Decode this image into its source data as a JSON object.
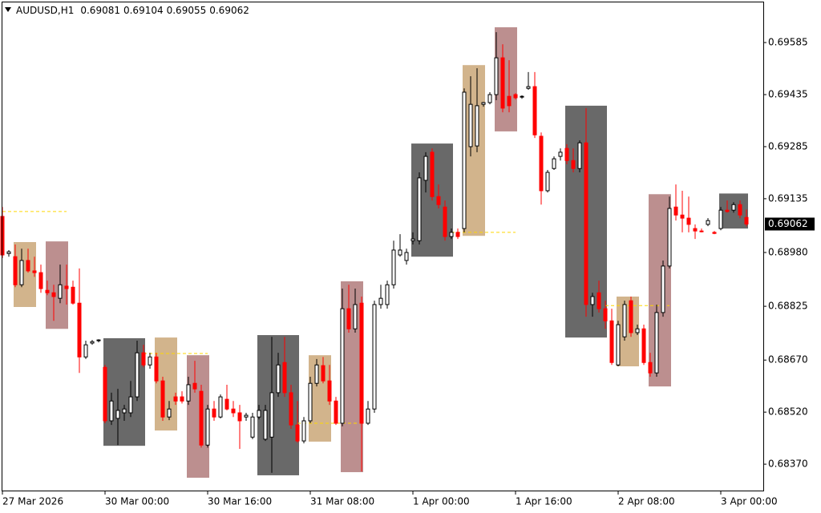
{
  "chart_data": {
    "type": "candlestick",
    "title": "AUDUSD,H1",
    "up_color": "#000000",
    "up_fill": "#ffffff",
    "down_color": "#ff0000",
    "categories": [
      "27 Mar 2026",
      null,
      null,
      null,
      null,
      null,
      null,
      null,
      null,
      null,
      null,
      null,
      null,
      null,
      null,
      null,
      "30 Mar 00:00",
      null,
      null,
      null,
      null,
      null,
      null,
      null,
      null,
      null,
      null,
      null,
      null,
      null,
      null,
      null,
      "30 Mar 16:00",
      null,
      null,
      null,
      null,
      null,
      null,
      null,
      null,
      null,
      null,
      null,
      null,
      null,
      null,
      null,
      "31 Mar 08:00",
      null,
      null,
      null,
      null,
      null,
      null,
      null,
      null,
      null,
      null,
      null,
      null,
      null,
      null,
      null,
      "1 Apr 00:00",
      null,
      null,
      null,
      null,
      null,
      null,
      null,
      null,
      null,
      null,
      null,
      null,
      null,
      null,
      null,
      "1 Apr 16:00",
      null,
      null,
      null,
      null,
      null,
      null,
      null,
      null,
      null,
      null,
      null,
      null,
      null,
      null,
      null,
      "2 Apr 08:00",
      null,
      null,
      null,
      null,
      null,
      null,
      null,
      null,
      null,
      null,
      null,
      null,
      null,
      null,
      null,
      "3 Apr 00:00",
      null,
      null,
      null,
      null
    ],
    "open": [
      0.69084,
      0.68977,
      0.68968,
      0.68887,
      0.68957,
      0.68927,
      0.68922,
      0.68871,
      0.68864,
      0.68848,
      0.68883,
      0.6888,
      0.68834,
      0.68679,
      0.68719,
      0.68726,
      0.68649,
      0.68495,
      0.68502,
      0.68518,
      0.68518,
      0.68564,
      0.68691,
      0.68656,
      0.68679,
      0.6861,
      0.68506,
      0.68564,
      0.68564,
      0.68552,
      0.68603,
      0.6858,
      0.68425,
      0.68529,
      0.68506,
      0.68557,
      0.68529,
      0.68518,
      0.68506,
      0.68448,
      0.68506,
      0.68442,
      0.68448,
      0.68576,
      0.68663,
      0.68576,
      0.68483,
      0.68437,
      0.68495,
      0.68603,
      0.68654,
      0.6861,
      0.68552,
      0.68488,
      0.68818,
      0.6876,
      0.68834,
      0.68488,
      0.68529,
      0.6883,
      0.6883,
      0.68887,
      0.68973,
      0.68957,
      0.69014,
      0.69014,
      0.69188,
      0.69269,
      0.69141,
      0.69111,
      0.69026,
      0.69038,
      0.69049,
      0.69285,
      0.69287,
      0.69407,
      0.69412,
      0.69435,
      0.69541,
      0.6943,
      0.69435,
      0.69428,
      0.69453,
      0.69458,
      0.69315,
      0.69158,
      0.69222,
      0.69257,
      0.6928,
      0.69245,
      0.69222,
      0.69296,
      0.6883,
      0.68864,
      0.68818,
      0.68783,
      0.68656,
      0.68737,
      0.68841,
      0.68749,
      0.6876,
      0.68663,
      0.68633,
      0.68807,
      0.68941,
      0.69111,
      0.69088,
      0.69079,
      0.69049,
      0.69042,
      0.69061,
      0.69038,
      0.69049,
      0.69102,
      0.69102,
      0.69118,
      0.69081
    ],
    "high": [
      0.69111,
      0.68987,
      0.69003,
      0.68991,
      0.68991,
      0.68968,
      0.68945,
      0.68899,
      0.68887,
      0.68945,
      0.68945,
      0.68899,
      0.68934,
      0.68726,
      0.68728,
      0.6873,
      0.68656,
      0.68576,
      0.68587,
      0.68541,
      0.6861,
      0.68726,
      0.68714,
      0.68691,
      0.68691,
      0.68622,
      0.68552,
      0.68576,
      0.6858,
      0.68622,
      0.68668,
      0.68599,
      0.68541,
      0.68552,
      0.68571,
      0.68599,
      0.68552,
      0.68541,
      0.68518,
      0.68518,
      0.68541,
      0.68541,
      0.68737,
      0.68691,
      0.68737,
      0.68599,
      0.68552,
      0.68506,
      0.68622,
      0.68673,
      0.68679,
      0.68656,
      0.68564,
      0.68876,
      0.68887,
      0.68876,
      0.68853,
      0.68552,
      0.68841,
      0.68887,
      0.68899,
      0.69014,
      0.69033,
      0.68991,
      0.69038,
      0.69211,
      0.69269,
      0.6928,
      0.69176,
      0.6913,
      0.69049,
      0.69049,
      0.69453,
      0.69488,
      0.69511,
      0.69414,
      0.69442,
      0.69615,
      0.6958,
      0.69534,
      0.69439,
      0.69433,
      0.695,
      0.695,
      0.69326,
      0.69218,
      0.69257,
      0.6928,
      0.69292,
      0.6928,
      0.69303,
      0.69396,
      0.68864,
      0.68899,
      0.68841,
      0.68818,
      0.68783,
      0.68841,
      0.68853,
      0.68772,
      0.68772,
      0.68691,
      0.6883,
      0.68957,
      0.69141,
      0.69176,
      0.69158,
      0.69141,
      0.69061,
      0.69049,
      0.69079,
      0.69042,
      0.69111,
      0.6913,
      0.69125,
      0.6913,
      0.69104
    ],
    "low": [
      0.68964,
      0.68968,
      0.6888,
      0.6888,
      0.68922,
      0.6891,
      0.68864,
      0.68857,
      0.68783,
      0.68834,
      0.6883,
      0.6883,
      0.68633,
      0.68673,
      0.68714,
      0.68721,
      0.68488,
      0.68483,
      0.68425,
      0.68495,
      0.68506,
      0.68552,
      0.68649,
      0.68645,
      0.68603,
      0.68495,
      0.68497,
      0.68541,
      0.68545,
      0.68541,
      0.68576,
      0.68418,
      0.68418,
      0.68495,
      0.68502,
      0.68525,
      0.68506,
      0.68414,
      0.68495,
      0.68442,
      0.68499,
      0.68437,
      0.68345,
      0.68564,
      0.68564,
      0.68472,
      0.68432,
      0.6843,
      0.68488,
      0.68594,
      0.68603,
      0.68541,
      0.68483,
      0.68479,
      0.68749,
      0.68749,
      0.68349,
      0.68483,
      0.68518,
      0.68818,
      0.68818,
      0.68876,
      0.68968,
      0.68945,
      0.69003,
      0.69003,
      0.69153,
      0.6913,
      0.69107,
      0.69014,
      0.69019,
      0.69019,
      0.69038,
      0.69257,
      0.69269,
      0.694,
      0.69407,
      0.69419,
      0.69384,
      0.69384,
      0.69421,
      0.69423,
      0.69449,
      0.6931,
      0.69118,
      0.69153,
      0.69218,
      0.69245,
      0.69234,
      0.69211,
      0.69211,
      0.68795,
      0.68795,
      0.68807,
      0.6876,
      0.68656,
      0.68652,
      0.68726,
      0.68737,
      0.68742,
      0.68656,
      0.68622,
      0.68622,
      0.68795,
      0.68934,
      0.69072,
      0.69038,
      0.69038,
      0.69019,
      0.69038,
      0.69056,
      0.69033,
      0.69044,
      0.69095,
      0.69095,
      0.69079,
      0.69055
    ],
    "close": [
      0.68973,
      0.68982,
      0.68887,
      0.68957,
      0.68927,
      0.68922,
      0.68876,
      0.68864,
      0.68853,
      0.68887,
      0.68876,
      0.68834,
      0.68679,
      0.68714,
      0.68723,
      0.68728,
      0.68495,
      0.68552,
      0.68525,
      0.68529,
      0.68564,
      0.68691,
      0.68656,
      0.68679,
      0.6861,
      0.68506,
      0.68529,
      0.68552,
      0.68552,
      0.68599,
      0.68587,
      0.68425,
      0.68529,
      0.68506,
      0.68564,
      0.68529,
      0.68518,
      0.68495,
      0.68511,
      0.68506,
      0.68525,
      0.68525,
      0.68576,
      0.68656,
      0.68576,
      0.68483,
      0.68437,
      0.68495,
      0.68603,
      0.68656,
      0.6861,
      0.68552,
      0.68488,
      0.68818,
      0.6876,
      0.6883,
      0.68488,
      0.68529,
      0.6883,
      0.68848,
      0.68887,
      0.68987,
      0.68987,
      0.6898,
      0.69019,
      0.69195,
      0.69257,
      0.69141,
      0.69118,
      0.69026,
      0.69038,
      0.69026,
      0.69442,
      0.69407,
      0.69403,
      0.69412,
      0.69435,
      0.69541,
      0.69396,
      0.69403,
      0.69426,
      0.6943,
      0.69458,
      0.69319,
      0.69158,
      0.69211,
      0.6925,
      0.69269,
      0.69245,
      0.69222,
      0.69296,
      0.6883,
      0.68853,
      0.68818,
      0.68783,
      0.68663,
      0.68772,
      0.6883,
      0.68749,
      0.6876,
      0.68663,
      0.68633,
      0.68807,
      0.68941,
      0.69107,
      0.69088,
      0.69079,
      0.69061,
      0.69042,
      0.6904,
      0.69072,
      0.69035,
      0.69102,
      0.69098,
      0.69118,
      0.69088,
      0.69062
    ],
    "boxes": [
      {
        "start": 2,
        "end": 5,
        "high": 0.6901,
        "low": 0.68823,
        "color": "#d2b48c"
      },
      {
        "start": 7,
        "end": 10,
        "high": 0.69012,
        "low": 0.6876,
        "color": "#bc8f8f"
      },
      {
        "start": 16,
        "end": 22,
        "high": 0.68733,
        "low": 0.68423,
        "color": "#696969"
      },
      {
        "start": 24,
        "end": 27,
        "high": 0.68735,
        "low": 0.68467,
        "color": "#d2b48c"
      },
      {
        "start": 29,
        "end": 32,
        "high": 0.68684,
        "low": 0.68331,
        "color": "#bc8f8f"
      },
      {
        "start": 40,
        "end": 46,
        "high": 0.68742,
        "low": 0.68338,
        "color": "#696969"
      },
      {
        "start": 48,
        "end": 51,
        "high": 0.68684,
        "low": 0.68435,
        "color": "#d2b48c"
      },
      {
        "start": 53,
        "end": 56,
        "high": 0.68897,
        "low": 0.68347,
        "color": "#bc8f8f"
      },
      {
        "start": 64,
        "end": 70,
        "high": 0.69294,
        "low": 0.68968,
        "color": "#696969"
      },
      {
        "start": 72,
        "end": 75,
        "high": 0.6952,
        "low": 0.69028,
        "color": "#d2b48c"
      },
      {
        "start": 77,
        "end": 80,
        "high": 0.69629,
        "low": 0.69329,
        "color": "#bc8f8f"
      },
      {
        "start": 88,
        "end": 94,
        "high": 0.69403,
        "low": 0.68735,
        "color": "#696969"
      },
      {
        "start": 96,
        "end": 99,
        "high": 0.68853,
        "low": 0.68652,
        "color": "#d2b48c"
      },
      {
        "start": 101,
        "end": 104,
        "high": 0.69148,
        "low": 0.68594,
        "color": "#bc8f8f"
      },
      {
        "start": 112,
        "end": 116,
        "high": 0.6915,
        "low": 0.69049,
        "color": "#696969"
      }
    ],
    "levels": [
      {
        "start": 0,
        "end": 10,
        "value": 0.69098,
        "color": "#ffd700"
      },
      {
        "start": 22,
        "end": 32,
        "value": 0.68689,
        "color": "#ffd700"
      },
      {
        "start": 46,
        "end": 56,
        "value": 0.68488,
        "color": "#ffd700"
      },
      {
        "start": 70,
        "end": 80,
        "value": 0.69038,
        "color": "#ffd700"
      },
      {
        "start": 94,
        "end": 104,
        "value": 0.68827,
        "color": "#ffd700"
      }
    ],
    "ylim": [
      0.68294,
      0.69703
    ],
    "yticks": [
      0.69585,
      0.69435,
      0.69285,
      0.69135,
      {
        "value": 0.6898,
        "label": "0.68980"
      },
      0.68825,
      {
        "value": 0.6867,
        "label": "0.68670"
      },
      {
        "value": 0.6852,
        "label": "0.68520"
      },
      {
        "value": 0.6837,
        "label": "0.68370"
      }
    ]
  }
}
